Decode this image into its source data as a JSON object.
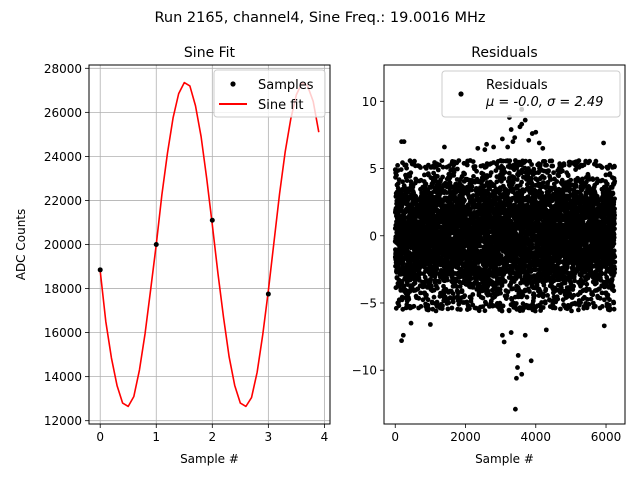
{
  "figure": {
    "suptitle": "Run 2165, channel4, Sine Freq.: 19.0016 MHz"
  },
  "chart_data": [
    {
      "type": "line",
      "title": "Sine Fit",
      "xlabel": "Sample #",
      "ylabel": "ADC Counts",
      "xlim": [
        -0.2,
        4.1
      ],
      "ylim": [
        11850,
        28150
      ],
      "xticks": [
        0,
        1,
        2,
        3,
        4
      ],
      "xtick_labels": [
        "0",
        "1",
        "2",
        "3",
        "4"
      ],
      "yticks": [
        12000,
        14000,
        16000,
        18000,
        20000,
        22000,
        24000,
        26000,
        28000
      ],
      "ytick_labels": [
        "12000",
        "14000",
        "16000",
        "18000",
        "20000",
        "22000",
        "24000",
        "26000",
        "28000"
      ],
      "grid": true,
      "legend": {
        "location": "top-right",
        "entries": [
          "Samples",
          "Sine fit"
        ]
      },
      "series": [
        {
          "name": "Samples",
          "kind": "scatter",
          "color": "#000000",
          "x": [
            0,
            1,
            2,
            3
          ],
          "y": [
            18850,
            20000,
            21100,
            17750
          ]
        },
        {
          "name": "Sine fit",
          "kind": "line",
          "color": "#ff0000",
          "x": [
            0.0,
            0.1,
            0.2,
            0.3,
            0.4,
            0.5,
            0.6,
            0.7,
            0.8,
            0.9,
            1.0,
            1.1,
            1.2,
            1.3,
            1.4,
            1.5,
            1.6,
            1.7,
            1.8,
            1.9,
            2.0,
            2.1,
            2.2,
            2.3,
            2.4,
            2.5,
            2.6,
            2.7,
            2.8,
            2.9,
            3.0,
            3.1,
            3.2,
            3.3,
            3.4,
            3.5,
            3.6,
            3.7,
            3.8,
            3.9
          ],
          "y": [
            18800,
            16500,
            14850,
            13600,
            12800,
            12650,
            13100,
            14300,
            15950,
            17950,
            20000,
            22250,
            24150,
            25750,
            26850,
            27350,
            27200,
            26300,
            24900,
            23000,
            20900,
            18700,
            16700,
            14900,
            13600,
            12800,
            12650,
            13050,
            14200,
            15900,
            17900,
            20100,
            22300,
            24200,
            25700,
            26800,
            27350,
            27200,
            26500,
            25100
          ]
        }
      ]
    },
    {
      "type": "scatter",
      "title": "Residuals",
      "xlabel": "Sample #",
      "ylabel": "",
      "xlim": [
        -320,
        6540
      ],
      "ylim": [
        -14,
        12.7
      ],
      "xticks": [
        0,
        2000,
        4000,
        6000
      ],
      "xtick_labels": [
        "0",
        "2000",
        "4000",
        "6000"
      ],
      "yticks": [
        -10,
        -5,
        0,
        5,
        10
      ],
      "ytick_labels": [
        "−10",
        "−5",
        "0",
        "5",
        "10"
      ],
      "grid": false,
      "legend": {
        "location": "top-right",
        "label": "Residuals",
        "stats": "μ = -0.0, σ = 2.49"
      },
      "n_points": 6250,
      "sigma": 2.49,
      "mean": 0.0,
      "x_range": [
        0,
        6249
      ],
      "core_clip": 5.6,
      "outliers": [
        {
          "x": 3420,
          "y": -12.9
        },
        {
          "x": 3450,
          "y": -10.6
        },
        {
          "x": 3600,
          "y": -10.3
        },
        {
          "x": 3480,
          "y": -9.8
        },
        {
          "x": 3870,
          "y": -9.3
        },
        {
          "x": 3500,
          "y": -8.9
        },
        {
          "x": 3250,
          "y": 8.8
        },
        {
          "x": 3300,
          "y": 7.9
        },
        {
          "x": 3600,
          "y": 8.3
        },
        {
          "x": 3700,
          "y": 8.6
        },
        {
          "x": 4000,
          "y": 7.7
        },
        {
          "x": 3100,
          "y": -7.9
        },
        {
          "x": 180,
          "y": -7.8
        },
        {
          "x": 230,
          "y": -7.4
        },
        {
          "x": 250,
          "y": 7.0
        },
        {
          "x": 180,
          "y": 7.0
        },
        {
          "x": 3050,
          "y": 7.2
        },
        {
          "x": 3050,
          "y": -7.4
        },
        {
          "x": 3900,
          "y": 7.6
        },
        {
          "x": 3700,
          "y": -7.4
        },
        {
          "x": 4200,
          "y": 6.5
        },
        {
          "x": 5930,
          "y": 6.9
        },
        {
          "x": 5950,
          "y": -6.7
        },
        {
          "x": 2550,
          "y": 6.4
        },
        {
          "x": 2350,
          "y": 6.5
        },
        {
          "x": 1400,
          "y": 6.6
        },
        {
          "x": 2600,
          "y": 6.8
        },
        {
          "x": 2800,
          "y": 6.6
        },
        {
          "x": 3200,
          "y": 6.6
        },
        {
          "x": 3350,
          "y": 7.0
        },
        {
          "x": 3800,
          "y": 7.1
        },
        {
          "x": 4100,
          "y": 6.9
        },
        {
          "x": 4300,
          "y": -7.0
        },
        {
          "x": 3300,
          "y": -7.2
        },
        {
          "x": 1000,
          "y": -6.6
        },
        {
          "x": 450,
          "y": -6.5
        },
        {
          "x": 3400,
          "y": 7.3
        },
        {
          "x": 3600,
          "y": 9.4
        },
        {
          "x": 3550,
          "y": 8.1
        }
      ]
    }
  ]
}
